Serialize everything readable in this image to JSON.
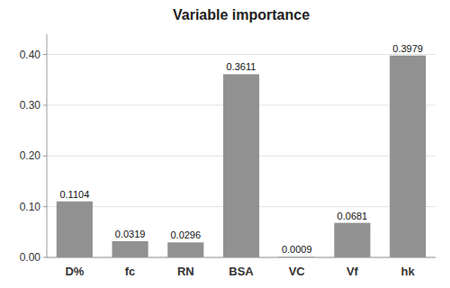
{
  "chart_data": {
    "type": "bar",
    "title": "Variable importance",
    "categories": [
      "D%",
      "fc",
      "RN",
      "BSA",
      "VC",
      "Vf",
      "hk"
    ],
    "values": [
      0.1104,
      0.0319,
      0.0296,
      0.3611,
      0.0009,
      0.0681,
      0.3979
    ],
    "color": "#919191",
    "ylim": [
      0,
      0.44
    ],
    "yticks": [
      {
        "value": 0,
        "label": "0.00"
      },
      {
        "value": 0.1,
        "label": "0.10"
      },
      {
        "value": 0.2,
        "label": "0.20"
      },
      {
        "value": 0.3,
        "label": "0.30"
      },
      {
        "value": 0.4,
        "label": "0.40"
      }
    ],
    "grid": true,
    "data_labels": true
  }
}
